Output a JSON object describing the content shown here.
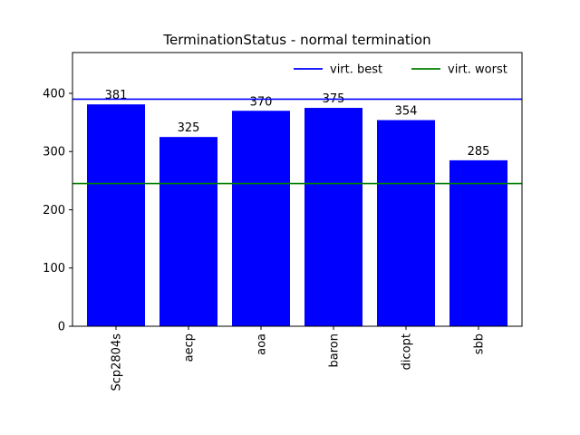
{
  "chart_data": {
    "type": "bar",
    "title": "TerminationStatus - normal termination",
    "xlabel": "",
    "ylabel": "",
    "categories": [
      "Scp2804s",
      "aecp",
      "aoa",
      "baron",
      "dicopt",
      "sbb"
    ],
    "values": [
      381,
      325,
      370,
      375,
      354,
      285
    ],
    "bar_color": "#0000ff",
    "ylim": [
      0,
      470
    ],
    "yticks": [
      0,
      100,
      200,
      300,
      400
    ],
    "reference_lines": [
      {
        "name": "virt. best",
        "value": 390,
        "color": "#0000ff"
      },
      {
        "name": "virt. worst",
        "value": 245,
        "color": "#008000"
      }
    ],
    "legend_position": "top-right",
    "grid": false
  }
}
